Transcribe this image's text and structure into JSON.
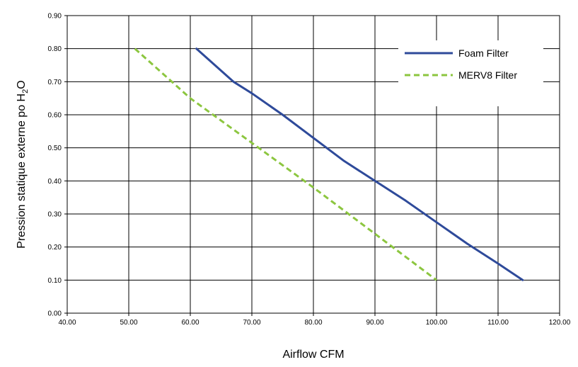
{
  "chart_data": {
    "type": "line",
    "xlabel": "Airflow CFM",
    "ylabel_main": "Pression statique externe po H",
    "ylabel_sub": "2",
    "ylabel_end": "O",
    "xlim": [
      40,
      120
    ],
    "ylim": [
      0,
      0.9
    ],
    "x_ticks": [
      "40.00",
      "50.00",
      "60.00",
      "70.00",
      "80.00",
      "90.00",
      "100.00",
      "110.00",
      "120.00"
    ],
    "y_ticks": [
      "0.00",
      "0.10",
      "0.20",
      "0.30",
      "0.40",
      "0.50",
      "0.60",
      "0.70",
      "0.80",
      "0.90"
    ],
    "grid": true,
    "legend_position": "top-right",
    "series": [
      {
        "name": "Foam Filter",
        "color": "#2e4a9a",
        "style": "solid",
        "points": [
          [
            61,
            0.8
          ],
          [
            64,
            0.75
          ],
          [
            67,
            0.7
          ],
          [
            70,
            0.665
          ],
          [
            75,
            0.6
          ],
          [
            80,
            0.53
          ],
          [
            85,
            0.46
          ],
          [
            90,
            0.4
          ],
          [
            95,
            0.34
          ],
          [
            100,
            0.275
          ],
          [
            105,
            0.21
          ],
          [
            110,
            0.15
          ],
          [
            114,
            0.1
          ]
        ]
      },
      {
        "name": "MERV8 Filter",
        "color": "#8cc63f",
        "style": "dashed",
        "points": [
          [
            51,
            0.8
          ],
          [
            60,
            0.65
          ],
          [
            70,
            0.515
          ],
          [
            80,
            0.38
          ],
          [
            90,
            0.24
          ],
          [
            100,
            0.1
          ]
        ]
      }
    ]
  }
}
